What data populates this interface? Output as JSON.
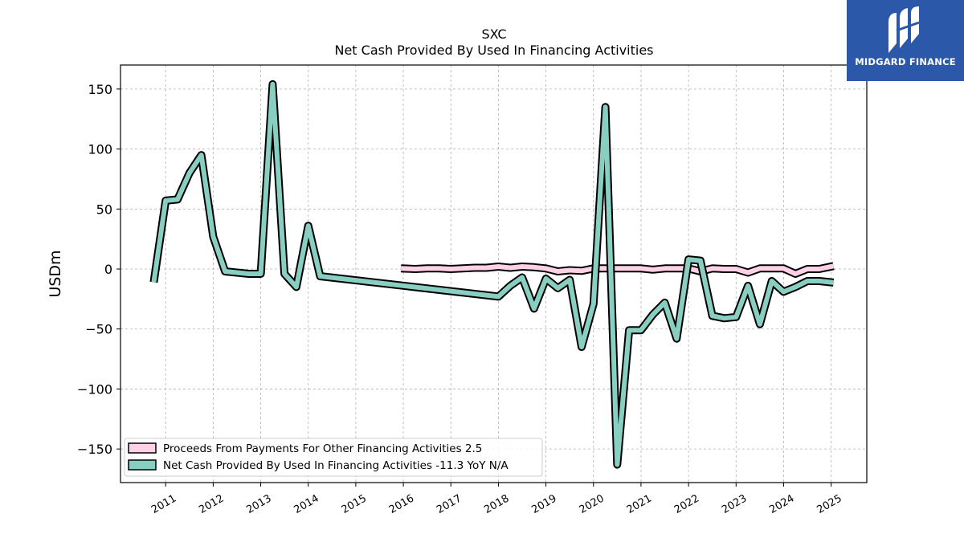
{
  "chart_data": {
    "type": "line",
    "title": "SXC",
    "subtitle": "Net Cash Provided By Used In Financing Activities",
    "ylabel": "USDm",
    "xlabel": "",
    "ylim": [
      -178,
      170
    ],
    "xlim": [
      2010.05,
      2025.75
    ],
    "y_ticks": [
      150,
      100,
      50,
      0,
      -50,
      -100,
      -150
    ],
    "y_tick_labels": [
      "150",
      "100",
      "50",
      "0",
      "−50",
      "−100",
      "−150"
    ],
    "x_ticks": [
      2011,
      2012,
      2013,
      2014,
      2015,
      2016,
      2017,
      2018,
      2019,
      2020,
      2021,
      2022,
      2023,
      2024,
      2025
    ],
    "x_tick_labels": [
      "2011",
      "2012",
      "2013",
      "2014",
      "2015",
      "2016",
      "2017",
      "2018",
      "2019",
      "2020",
      "2021",
      "2022",
      "2023",
      "2024",
      "2025"
    ],
    "grid": true,
    "legend_position": "lower-left",
    "series": [
      {
        "name": "Proceeds From Payments For Other Financing Activities",
        "legend_label": "Proceeds From Payments For Other Financing Activities  2.5",
        "color": "#ffd1e6",
        "x": [
          2015.95,
          2016.25,
          2016.5,
          2016.75,
          2017.0,
          2017.25,
          2017.5,
          2017.75,
          2018.0,
          2018.25,
          2018.5,
          2018.75,
          2019.0,
          2019.25,
          2019.5,
          2019.75,
          2020.0,
          2020.25,
          2020.5,
          2020.75,
          2021.0,
          2021.25,
          2021.5,
          2021.75,
          2022.0,
          2022.25,
          2022.5,
          2022.75,
          2023.0,
          2023.25,
          2023.5,
          2023.75,
          2024.0,
          2024.25,
          2024.5,
          2024.75,
          2025.05
        ],
        "values": [
          0.5,
          0.0,
          0.5,
          0.5,
          0.0,
          0.5,
          1.0,
          1.0,
          2.0,
          1.0,
          2.0,
          1.5,
          0.5,
          -2.0,
          -1.0,
          -1.5,
          0.5,
          0.5,
          0.5,
          0.5,
          0.5,
          -0.5,
          0.5,
          0.5,
          0.5,
          -2.0,
          0.5,
          0.0,
          0.0,
          -3.0,
          0.5,
          0.5,
          0.5,
          -4.0,
          0.0,
          0.0,
          2.5
        ]
      },
      {
        "name": "Net Cash Provided By Used In Financing Activities",
        "legend_label": "Net Cash Provided By Used In Financing Activities  -11.3 YoY N/A",
        "color": "#88cfc1",
        "x": [
          2010.75,
          2011.0,
          2011.25,
          2011.5,
          2011.75,
          2012.0,
          2012.25,
          2012.5,
          2012.75,
          2013.0,
          2013.25,
          2013.5,
          2013.75,
          2014.0,
          2014.25,
          2018.0,
          2018.25,
          2018.5,
          2018.75,
          2019.0,
          2019.25,
          2019.5,
          2019.75,
          2020.0,
          2020.25,
          2020.5,
          2020.75,
          2021.0,
          2021.25,
          2021.5,
          2021.75,
          2022.0,
          2022.25,
          2022.5,
          2022.75,
          2023.0,
          2023.25,
          2023.5,
          2023.75,
          2024.0,
          2024.25,
          2024.5,
          2024.75,
          2025.05
        ],
        "values": [
          -11,
          57,
          58,
          80,
          95,
          27,
          -2,
          -3,
          -4,
          -4,
          154,
          -4,
          -15,
          36,
          -6,
          -23,
          -14,
          -7,
          -33,
          -8,
          -16,
          -9,
          -65,
          -29,
          135,
          -163,
          -51,
          -51,
          -38,
          -28,
          -58,
          8,
          7,
          -39,
          -41,
          -40,
          -14,
          -46,
          -10,
          -19,
          -15,
          -10,
          -10,
          -11.3
        ]
      }
    ]
  },
  "logo": {
    "text": "MIDGARD FINANCE"
  }
}
